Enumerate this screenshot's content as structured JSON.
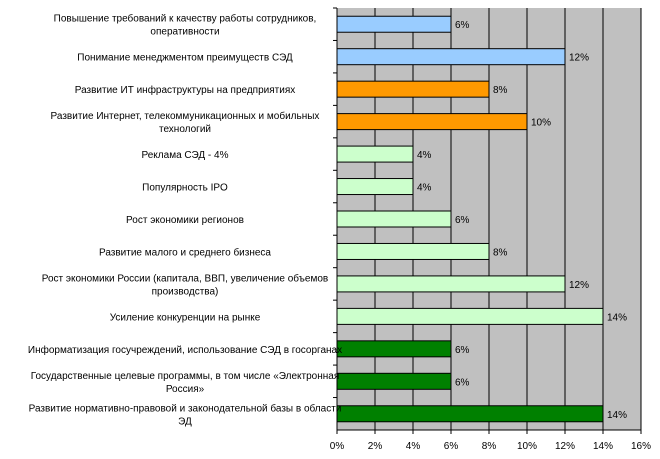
{
  "chart_data": {
    "type": "bar",
    "orientation": "horizontal",
    "categories": [
      "Повышение требований к качеству работы сотрудников, оперативности",
      "Понимание менеджментом преимуществ СЭД",
      "Развитие ИТ инфраструктуры на предприятиях",
      "Развитие Интернет, телекоммуникационных и мобильных технологий",
      "Реклама СЭД - 4%",
      "Популярность IPO",
      "Рост экономики регионов",
      "Развитие малого и среднего бизнеса",
      "Рост экономики России (капитала, ВВП, увеличение объемов производства)",
      "Усиление конкуренции на рынке",
      "Информатизация госучреждений, использование СЭД в госорганах",
      "Государственные целевые программы, в том числе «Электронная Россия»",
      "Развитие нормативно-правовой и законодательной базы в области ЭД"
    ],
    "category_lines": [
      [
        "Повышение требований к качеству работы сотрудников,",
        "оперативности"
      ],
      [
        "Понимание менеджментом преимуществ СЭД"
      ],
      [
        "Развитие ИТ инфраструктуры на предприятиях"
      ],
      [
        "Развитие Интернет, телекоммуникационных и мобильных",
        "технологий"
      ],
      [
        "Реклама СЭД - 4%"
      ],
      [
        "Популярность IPO"
      ],
      [
        "Рост экономики регионов"
      ],
      [
        "Развитие малого и среднего бизнеса"
      ],
      [
        "Рост экономики России (капитала, ВВП, увеличение объемов",
        "производства)"
      ],
      [
        "Усиление конкуренции на рынке"
      ],
      [
        "Информатизация госучреждений, использование СЭД в госорганах"
      ],
      [
        "Государственные целевые программы, в том числе «Электронная",
        "Россия»"
      ],
      [
        "Развитие нормативно-правовой и законодательной базы в области",
        "ЭД"
      ]
    ],
    "values": [
      6,
      12,
      8,
      10,
      4,
      4,
      6,
      8,
      12,
      14,
      6,
      6,
      14
    ],
    "data_labels": [
      "6%",
      "12%",
      "8%",
      "10%",
      "4%",
      "4%",
      "6%",
      "8%",
      "12%",
      "14%",
      "6%",
      "6%",
      "14%"
    ],
    "bar_colors": [
      "#99ccff",
      "#99ccff",
      "#ff9900",
      "#ff9900",
      "#ccffcc",
      "#ccffcc",
      "#ccffcc",
      "#ccffcc",
      "#ccffcc",
      "#ccffcc",
      "#008000",
      "#008000",
      "#008000"
    ],
    "xlim": [
      0,
      16
    ],
    "xticks": [
      "0%",
      "2%",
      "4%",
      "6%",
      "8%",
      "10%",
      "12%",
      "14%",
      "16%"
    ],
    "grid": true,
    "plot_background": "#c0c0c0",
    "title": "",
    "xlabel": "",
    "ylabel": ""
  }
}
